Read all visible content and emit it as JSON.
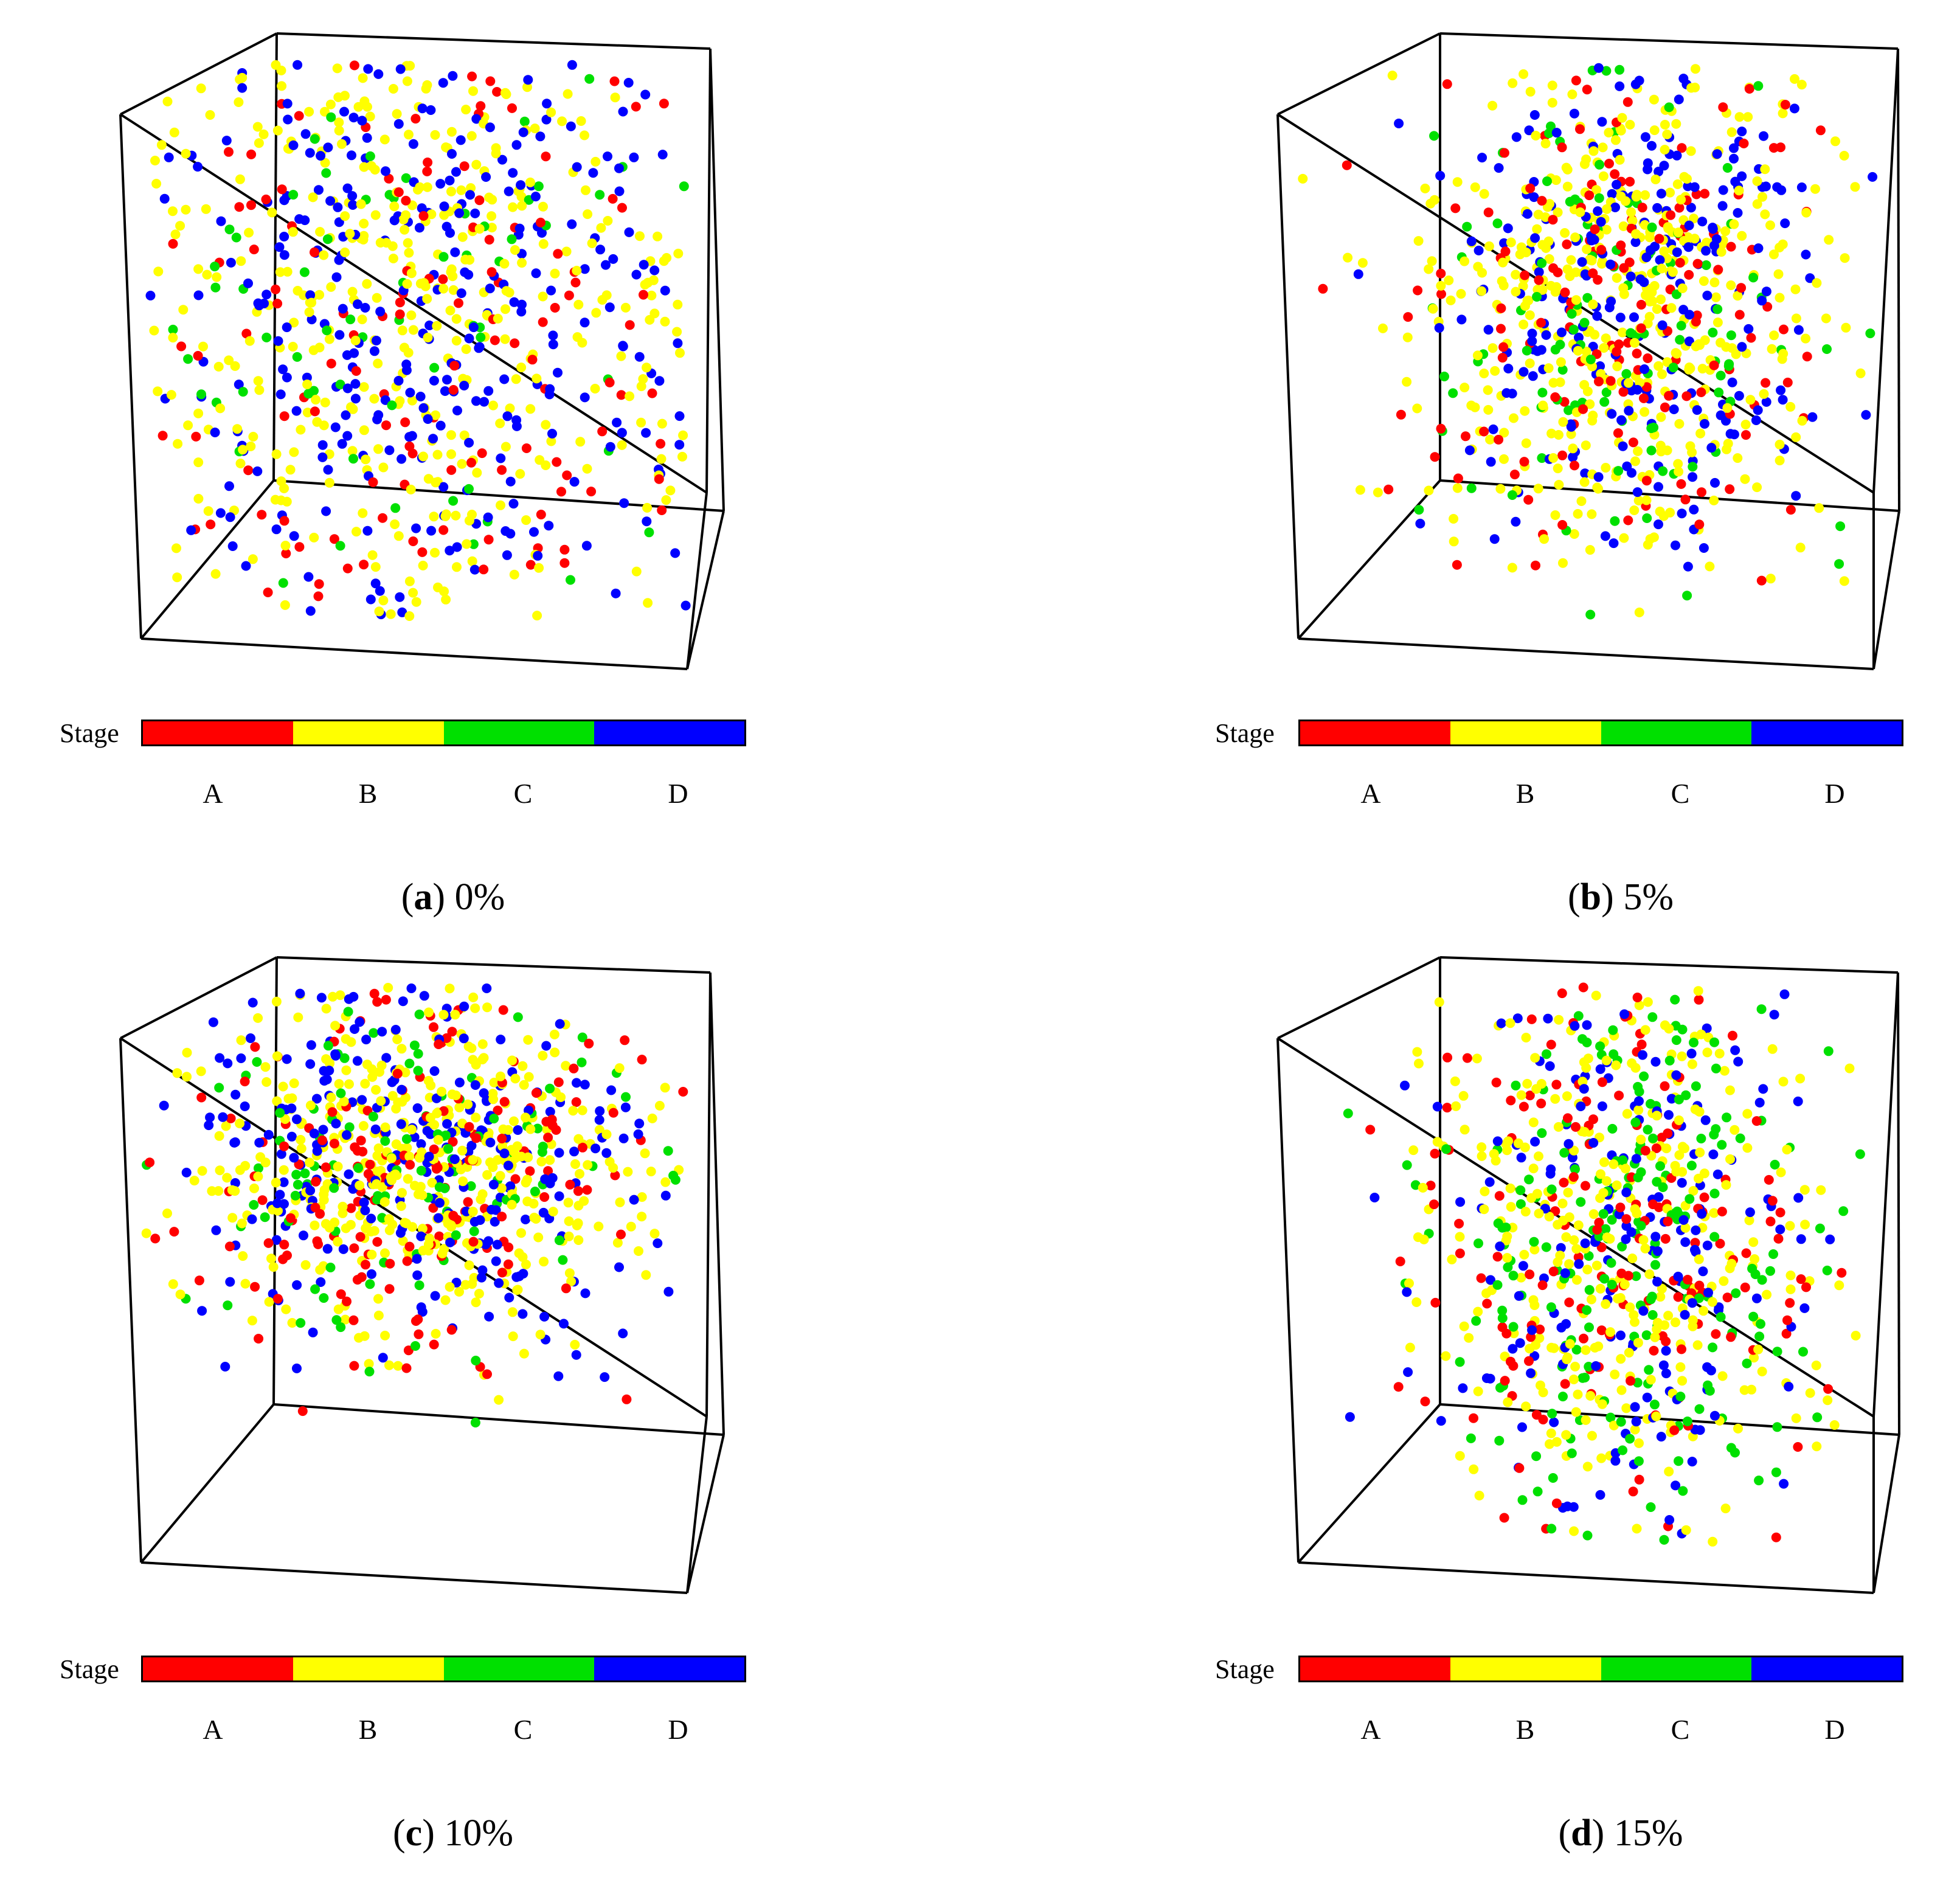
{
  "figure": {
    "stage_label": "Stage",
    "stages": [
      {
        "label": "A",
        "color": "#ff0000"
      },
      {
        "label": "B",
        "color": "#ffff00"
      },
      {
        "label": "C",
        "color": "#00e000"
      },
      {
        "label": "D",
        "color": "#0000ff"
      }
    ],
    "frame_color": "#000000"
  },
  "panels": [
    {
      "letter": "a",
      "value": "0%"
    },
    {
      "letter": "b",
      "value": "5%"
    },
    {
      "letter": "c",
      "value": "10%"
    },
    {
      "letter": "d",
      "value": "15%"
    }
  ],
  "chart_data": [
    {
      "type": "scatter",
      "title": "(a) 0%",
      "series": [
        {
          "name": "A"
        },
        {
          "name": "B"
        },
        {
          "name": "C"
        },
        {
          "name": "D"
        }
      ],
      "distribution": "spread throughout cube",
      "approx_counts": [
        150,
        500,
        80,
        450
      ]
    },
    {
      "type": "scatter",
      "title": "(b) 5%",
      "series": [
        {
          "name": "A"
        },
        {
          "name": "B"
        },
        {
          "name": "C"
        },
        {
          "name": "D"
        }
      ],
      "distribution": "concentrated in centre",
      "approx_counts": [
        200,
        550,
        150,
        350
      ]
    },
    {
      "type": "scatter",
      "title": "(c) 10%",
      "series": [
        {
          "name": "A"
        },
        {
          "name": "B"
        },
        {
          "name": "C"
        },
        {
          "name": "D"
        }
      ],
      "distribution": "concentrated in upper-central band",
      "approx_counts": [
        200,
        450,
        150,
        400
      ]
    },
    {
      "type": "scatter",
      "title": "(d) 15%",
      "series": [
        {
          "name": "A"
        },
        {
          "name": "B"
        },
        {
          "name": "C"
        },
        {
          "name": "D"
        }
      ],
      "distribution": "vertically spread column",
      "approx_counts": [
        200,
        450,
        300,
        350
      ]
    }
  ]
}
